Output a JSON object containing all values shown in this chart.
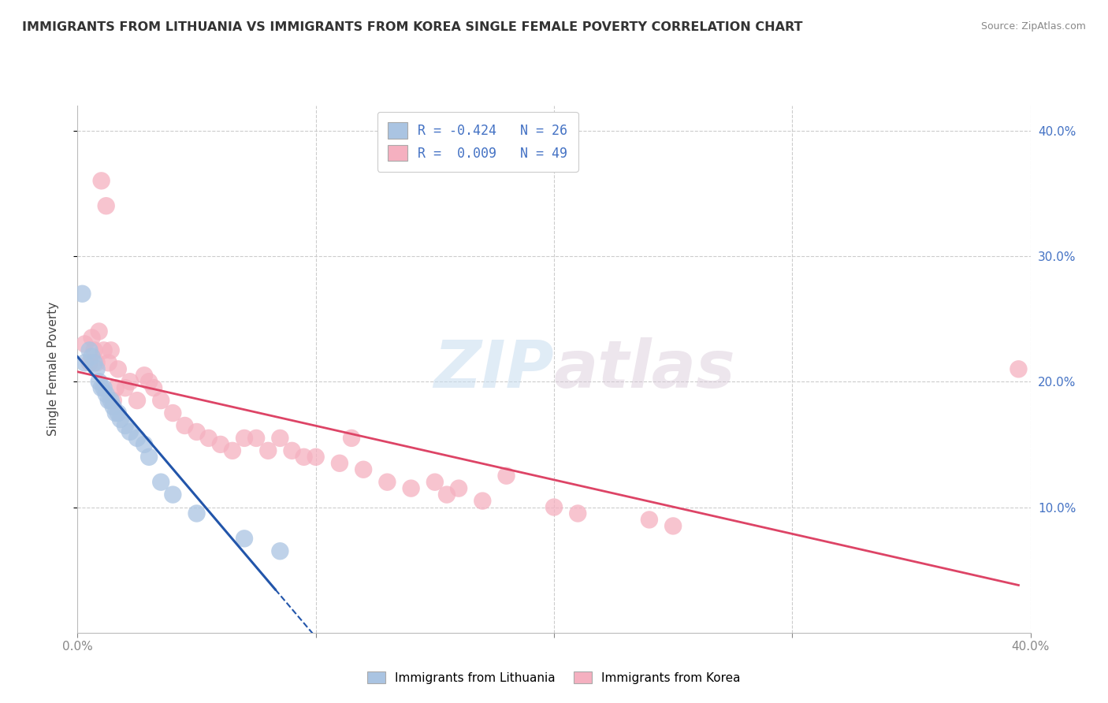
{
  "title": "IMMIGRANTS FROM LITHUANIA VS IMMIGRANTS FROM KOREA SINGLE FEMALE POVERTY CORRELATION CHART",
  "source": "Source: ZipAtlas.com",
  "ylabel": "Single Female Poverty",
  "color_lithuania": "#aac4e2",
  "color_korea": "#f5b0c0",
  "line_color_lithuania": "#2255aa",
  "line_color_korea": "#dd4466",
  "watermark_zip": "ZIP",
  "watermark_atlas": "atlas",
  "xlim": [
    0.0,
    0.4
  ],
  "ylim": [
    0.0,
    0.42
  ],
  "legend_label1": "R = -0.424   N = 26",
  "legend_label2": "R =  0.009   N = 49",
  "lithuania_x": [
    0.002,
    0.003,
    0.005,
    0.006,
    0.007,
    0.008,
    0.009,
    0.01,
    0.011,
    0.012,
    0.013,
    0.014,
    0.015,
    0.016,
    0.017,
    0.018,
    0.02,
    0.022,
    0.025,
    0.028,
    0.03,
    0.035,
    0.04,
    0.05,
    0.07,
    0.085
  ],
  "lithuania_y": [
    0.27,
    0.215,
    0.225,
    0.22,
    0.215,
    0.21,
    0.2,
    0.195,
    0.195,
    0.19,
    0.185,
    0.185,
    0.18,
    0.175,
    0.175,
    0.17,
    0.165,
    0.16,
    0.155,
    0.15,
    0.14,
    0.12,
    0.11,
    0.095,
    0.075,
    0.065
  ],
  "korea_x": [
    0.003,
    0.005,
    0.006,
    0.007,
    0.008,
    0.009,
    0.01,
    0.011,
    0.012,
    0.013,
    0.014,
    0.015,
    0.016,
    0.017,
    0.02,
    0.022,
    0.025,
    0.028,
    0.03,
    0.032,
    0.035,
    0.04,
    0.045,
    0.05,
    0.055,
    0.06,
    0.065,
    0.07,
    0.075,
    0.08,
    0.085,
    0.09,
    0.095,
    0.1,
    0.11,
    0.115,
    0.12,
    0.13,
    0.14,
    0.15,
    0.155,
    0.16,
    0.17,
    0.18,
    0.2,
    0.21,
    0.24,
    0.25,
    0.395
  ],
  "korea_y": [
    0.23,
    0.215,
    0.235,
    0.225,
    0.215,
    0.24,
    0.36,
    0.225,
    0.34,
    0.215,
    0.225,
    0.185,
    0.195,
    0.21,
    0.195,
    0.2,
    0.185,
    0.205,
    0.2,
    0.195,
    0.185,
    0.175,
    0.165,
    0.16,
    0.155,
    0.15,
    0.145,
    0.155,
    0.155,
    0.145,
    0.155,
    0.145,
    0.14,
    0.14,
    0.135,
    0.155,
    0.13,
    0.12,
    0.115,
    0.12,
    0.11,
    0.115,
    0.105,
    0.125,
    0.1,
    0.095,
    0.09,
    0.085,
    0.21
  ]
}
